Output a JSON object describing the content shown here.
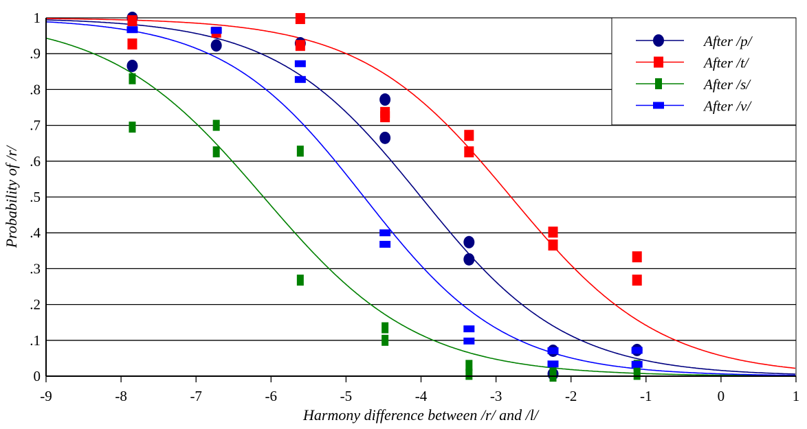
{
  "chart_data": {
    "type": "scatter",
    "title": "",
    "xlabel": "Harmony difference between /r/ and /l/",
    "ylabel": "Probability of /r/",
    "xlim": [
      -9,
      1
    ],
    "ylim": [
      0,
      1
    ],
    "xticks": [
      "-9",
      "-8",
      "-7",
      "-6",
      "-5",
      "-4",
      "-3",
      "-2",
      "-1",
      "0",
      "1"
    ],
    "yticks": [
      "0",
      ".1",
      ".2",
      ".3",
      ".4",
      ".5",
      ".6",
      ".7",
      ".8",
      ".9",
      "1"
    ],
    "grid": "horizontal",
    "legend_position": "top-right",
    "series": [
      {
        "name": "After /p/",
        "color": "#000080",
        "marker": "circle",
        "fit": {
          "midpoint": -4.0,
          "slope": 1.03
        },
        "points": [
          [
            -7.85,
            1.0
          ],
          [
            -7.85,
            0.866
          ],
          [
            -6.73,
            0.923
          ],
          [
            -5.61,
            0.929
          ],
          [
            -4.48,
            0.772
          ],
          [
            -4.48,
            0.665
          ],
          [
            -3.36,
            0.374
          ],
          [
            -3.36,
            0.326
          ],
          [
            -2.24,
            0.071
          ],
          [
            -2.24,
            0.006
          ],
          [
            -1.12,
            0.073
          ]
        ]
      },
      {
        "name": "After /t/",
        "color": "#ff0000",
        "marker": "square",
        "fit": {
          "midpoint": -2.8,
          "slope": 1.0
        },
        "points": [
          [
            -7.85,
            0.992
          ],
          [
            -7.85,
            0.927
          ],
          [
            -6.73,
            0.96
          ],
          [
            -5.61,
            0.998
          ],
          [
            -5.61,
            0.923
          ],
          [
            -4.48,
            0.736
          ],
          [
            -4.48,
            0.724
          ],
          [
            -3.36,
            0.672
          ],
          [
            -3.36,
            0.626
          ],
          [
            -2.24,
            0.402
          ],
          [
            -2.24,
            0.366
          ],
          [
            -1.12,
            0.333
          ],
          [
            -1.12,
            0.268
          ]
        ]
      },
      {
        "name": "After /s/",
        "color": "#008000",
        "marker": "vbar",
        "fit": {
          "midpoint": -6.1,
          "slope": 0.97
        },
        "points": [
          [
            -7.85,
            0.83
          ],
          [
            -7.85,
            0.695
          ],
          [
            -6.73,
            0.7
          ],
          [
            -6.73,
            0.626
          ],
          [
            -5.61,
            0.628
          ],
          [
            -5.61,
            0.268
          ],
          [
            -4.48,
            0.135
          ],
          [
            -4.48,
            0.1
          ],
          [
            -3.36,
            0.03
          ],
          [
            -3.36,
            0.005
          ],
          [
            -2.24,
            0.02
          ],
          [
            -2.24,
            0.0
          ],
          [
            -1.12,
            0.03
          ],
          [
            -1.12,
            0.005
          ]
        ]
      },
      {
        "name": "After /v/",
        "color": "#0000ff",
        "marker": "hbar",
        "fit": {
          "midpoint": -4.76,
          "slope": 1.06
        },
        "points": [
          [
            -7.85,
            0.967
          ],
          [
            -6.73,
            0.965
          ],
          [
            -5.61,
            0.872
          ],
          [
            -5.61,
            0.828
          ],
          [
            -4.48,
            0.4
          ],
          [
            -4.48,
            0.368
          ],
          [
            -3.36,
            0.132
          ],
          [
            -3.36,
            0.098
          ],
          [
            -2.24,
            0.071
          ],
          [
            -2.24,
            0.034
          ],
          [
            -1.12,
            0.072
          ],
          [
            -1.12,
            0.033
          ]
        ]
      }
    ]
  }
}
